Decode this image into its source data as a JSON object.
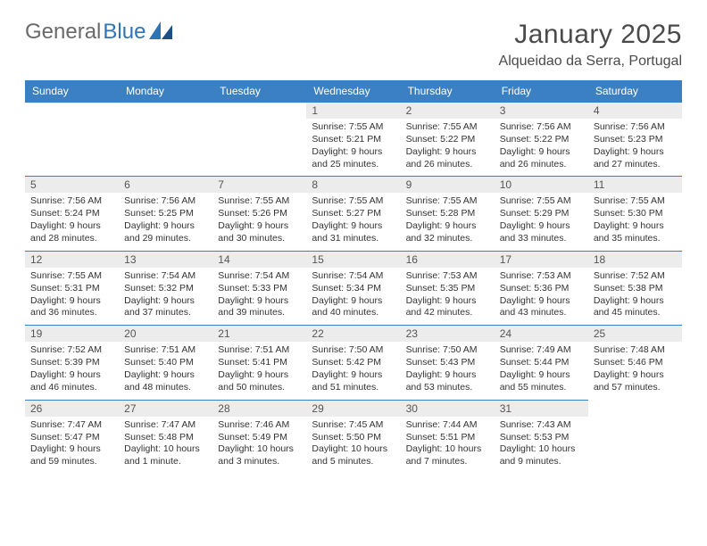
{
  "logo": {
    "text1": "General",
    "text2": "Blue"
  },
  "title": "January 2025",
  "location": "Alqueidao da Serra, Portugal",
  "colors": {
    "header_bg": "#3a80c3",
    "header_text": "#ffffff",
    "border": "#3a80c3",
    "daynum_bg": "#ececec",
    "logo_gray": "#6a6a6a",
    "logo_blue": "#2f74b5"
  },
  "weekdays": [
    "Sunday",
    "Monday",
    "Tuesday",
    "Wednesday",
    "Thursday",
    "Friday",
    "Saturday"
  ],
  "leading_blanks": 3,
  "days": [
    {
      "n": 1,
      "sunrise": "7:55 AM",
      "sunset": "5:21 PM",
      "daylight": "9 hours and 25 minutes."
    },
    {
      "n": 2,
      "sunrise": "7:55 AM",
      "sunset": "5:22 PM",
      "daylight": "9 hours and 26 minutes."
    },
    {
      "n": 3,
      "sunrise": "7:56 AM",
      "sunset": "5:22 PM",
      "daylight": "9 hours and 26 minutes."
    },
    {
      "n": 4,
      "sunrise": "7:56 AM",
      "sunset": "5:23 PM",
      "daylight": "9 hours and 27 minutes."
    },
    {
      "n": 5,
      "sunrise": "7:56 AM",
      "sunset": "5:24 PM",
      "daylight": "9 hours and 28 minutes."
    },
    {
      "n": 6,
      "sunrise": "7:56 AM",
      "sunset": "5:25 PM",
      "daylight": "9 hours and 29 minutes."
    },
    {
      "n": 7,
      "sunrise": "7:55 AM",
      "sunset": "5:26 PM",
      "daylight": "9 hours and 30 minutes."
    },
    {
      "n": 8,
      "sunrise": "7:55 AM",
      "sunset": "5:27 PM",
      "daylight": "9 hours and 31 minutes."
    },
    {
      "n": 9,
      "sunrise": "7:55 AM",
      "sunset": "5:28 PM",
      "daylight": "9 hours and 32 minutes."
    },
    {
      "n": 10,
      "sunrise": "7:55 AM",
      "sunset": "5:29 PM",
      "daylight": "9 hours and 33 minutes."
    },
    {
      "n": 11,
      "sunrise": "7:55 AM",
      "sunset": "5:30 PM",
      "daylight": "9 hours and 35 minutes."
    },
    {
      "n": 12,
      "sunrise": "7:55 AM",
      "sunset": "5:31 PM",
      "daylight": "9 hours and 36 minutes."
    },
    {
      "n": 13,
      "sunrise": "7:54 AM",
      "sunset": "5:32 PM",
      "daylight": "9 hours and 37 minutes."
    },
    {
      "n": 14,
      "sunrise": "7:54 AM",
      "sunset": "5:33 PM",
      "daylight": "9 hours and 39 minutes."
    },
    {
      "n": 15,
      "sunrise": "7:54 AM",
      "sunset": "5:34 PM",
      "daylight": "9 hours and 40 minutes."
    },
    {
      "n": 16,
      "sunrise": "7:53 AM",
      "sunset": "5:35 PM",
      "daylight": "9 hours and 42 minutes."
    },
    {
      "n": 17,
      "sunrise": "7:53 AM",
      "sunset": "5:36 PM",
      "daylight": "9 hours and 43 minutes."
    },
    {
      "n": 18,
      "sunrise": "7:52 AM",
      "sunset": "5:38 PM",
      "daylight": "9 hours and 45 minutes."
    },
    {
      "n": 19,
      "sunrise": "7:52 AM",
      "sunset": "5:39 PM",
      "daylight": "9 hours and 46 minutes."
    },
    {
      "n": 20,
      "sunrise": "7:51 AM",
      "sunset": "5:40 PM",
      "daylight": "9 hours and 48 minutes."
    },
    {
      "n": 21,
      "sunrise": "7:51 AM",
      "sunset": "5:41 PM",
      "daylight": "9 hours and 50 minutes."
    },
    {
      "n": 22,
      "sunrise": "7:50 AM",
      "sunset": "5:42 PM",
      "daylight": "9 hours and 51 minutes."
    },
    {
      "n": 23,
      "sunrise": "7:50 AM",
      "sunset": "5:43 PM",
      "daylight": "9 hours and 53 minutes."
    },
    {
      "n": 24,
      "sunrise": "7:49 AM",
      "sunset": "5:44 PM",
      "daylight": "9 hours and 55 minutes."
    },
    {
      "n": 25,
      "sunrise": "7:48 AM",
      "sunset": "5:46 PM",
      "daylight": "9 hours and 57 minutes."
    },
    {
      "n": 26,
      "sunrise": "7:47 AM",
      "sunset": "5:47 PM",
      "daylight": "9 hours and 59 minutes."
    },
    {
      "n": 27,
      "sunrise": "7:47 AM",
      "sunset": "5:48 PM",
      "daylight": "10 hours and 1 minute."
    },
    {
      "n": 28,
      "sunrise": "7:46 AM",
      "sunset": "5:49 PM",
      "daylight": "10 hours and 3 minutes."
    },
    {
      "n": 29,
      "sunrise": "7:45 AM",
      "sunset": "5:50 PM",
      "daylight": "10 hours and 5 minutes."
    },
    {
      "n": 30,
      "sunrise": "7:44 AM",
      "sunset": "5:51 PM",
      "daylight": "10 hours and 7 minutes."
    },
    {
      "n": 31,
      "sunrise": "7:43 AM",
      "sunset": "5:53 PM",
      "daylight": "10 hours and 9 minutes."
    }
  ],
  "labels": {
    "sunrise": "Sunrise:",
    "sunset": "Sunset:",
    "daylight": "Daylight:"
  }
}
